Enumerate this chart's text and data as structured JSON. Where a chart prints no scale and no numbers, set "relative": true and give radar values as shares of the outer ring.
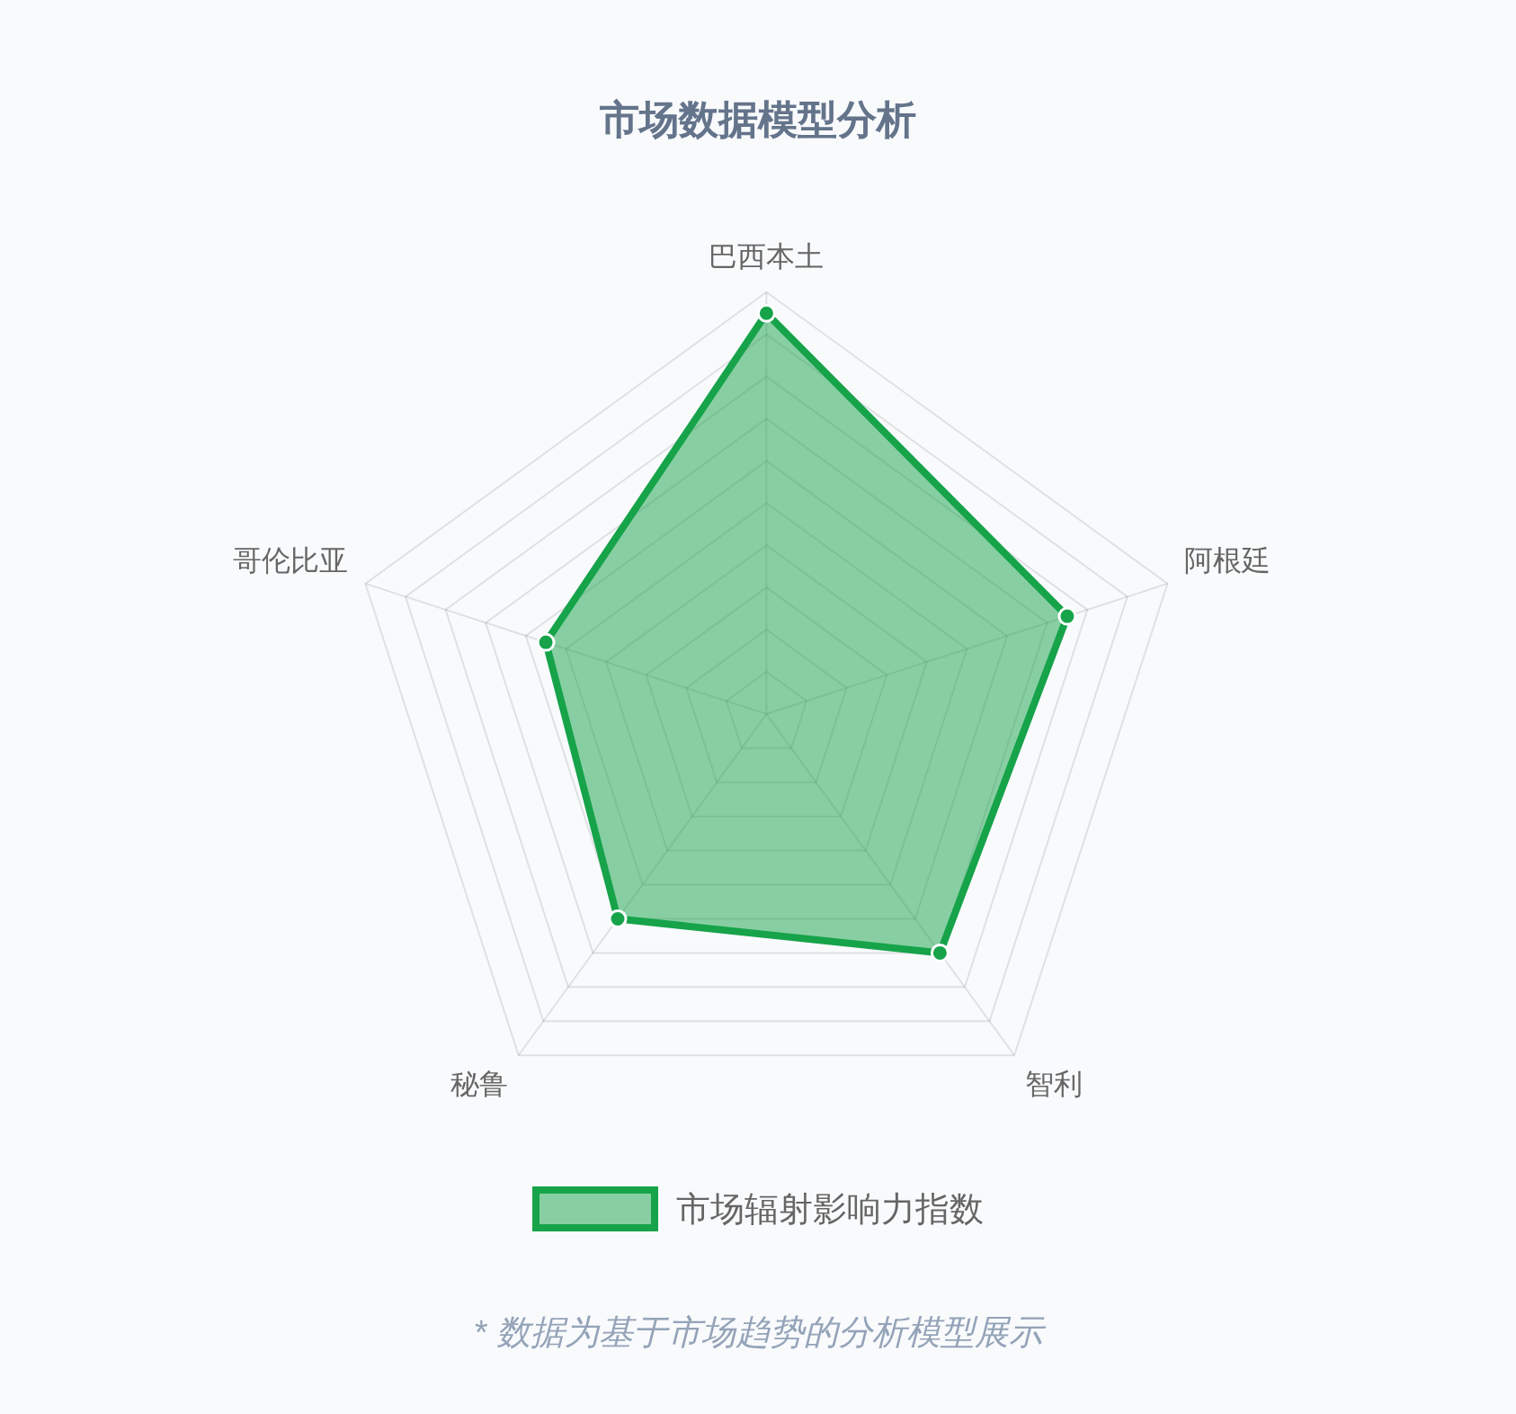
{
  "chart_data": {
    "type": "radar",
    "title": "市场数据模型分析",
    "categories": [
      "巴西本土",
      "阿根廷",
      "智利",
      "秘鲁",
      "哥伦比亚"
    ],
    "relative": true,
    "series": [
      {
        "name": "市场辐射影响力指数",
        "color": "#16a34a",
        "values": [
          0.95,
          0.75,
          0.7,
          0.6,
          0.55
        ]
      }
    ],
    "grid": true,
    "legend": "bottom",
    "marker": "circle",
    "annotations": [
      "* 数据为基于市场趋势的分析模型展示"
    ]
  }
}
